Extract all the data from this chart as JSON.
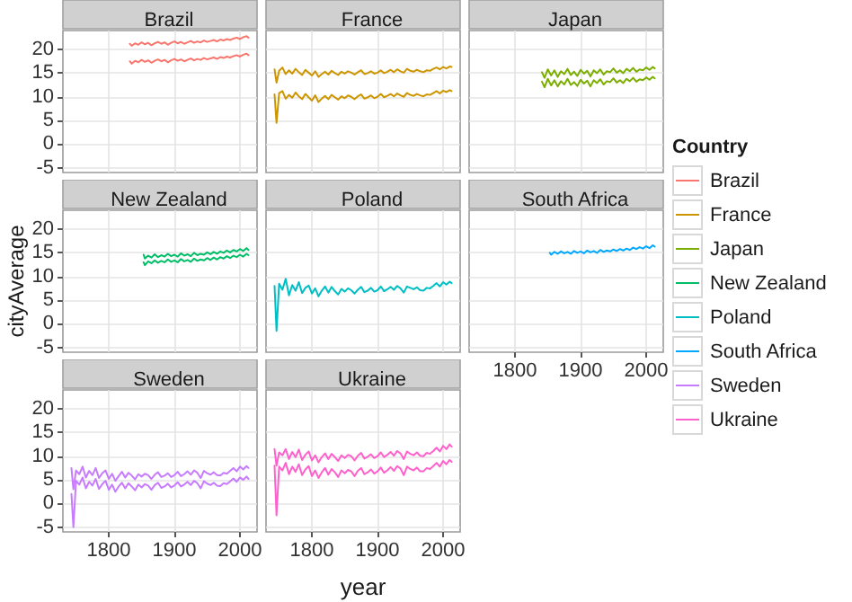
{
  "chart_data": [
    {
      "type": "line",
      "title": "Brazil",
      "legend": "right",
      "legend_title": "Country",
      "x": [
        1832,
        1835,
        1840,
        1845,
        1850,
        1855,
        1860,
        1865,
        1870,
        1875,
        1880,
        1885,
        1890,
        1895,
        1900,
        1905,
        1910,
        1915,
        1920,
        1925,
        1930,
        1935,
        1940,
        1945,
        1950,
        1955,
        1960,
        1965,
        1970,
        1975,
        1980,
        1985,
        1990,
        1995,
        2000,
        2005,
        2010,
        2013
      ],
      "xlim": [
        1730,
        2026
      ],
      "ylim": [
        -6,
        24
      ],
      "xticks": [
        1800,
        1900,
        2000
      ],
      "yticks": [
        -5,
        0,
        5,
        10,
        15,
        20
      ],
      "grid": true,
      "marker": "none",
      "tick_labels": "y",
      "series": [
        {
          "name": "Brazil",
          "color": "#f8766d",
          "values": [
            21.2,
            20.8,
            21.3,
            21.0,
            21.5,
            21.1,
            21.4,
            20.9,
            21.3,
            21.6,
            21.2,
            21.5,
            21.0,
            21.4,
            21.7,
            21.3,
            21.6,
            21.2,
            21.5,
            21.8,
            21.4,
            21.7,
            21.5,
            21.9,
            21.6,
            21.8,
            22.0,
            21.7,
            22.1,
            21.9,
            22.2,
            22.0,
            22.3,
            22.5,
            22.2,
            22.6,
            22.8,
            22.5
          ]
        },
        {
          "color": "#f8766d",
          "values": [
            17.5,
            17.0,
            17.6,
            17.3,
            17.8,
            17.4,
            17.7,
            17.2,
            17.6,
            17.9,
            17.5,
            17.8,
            17.3,
            17.7,
            18.0,
            17.6,
            17.9,
            17.5,
            17.8,
            18.1,
            17.7,
            18.0,
            17.8,
            18.2,
            17.9,
            18.1,
            18.3,
            18.0,
            18.4,
            18.2,
            18.5,
            18.3,
            18.6,
            18.8,
            18.5,
            18.9,
            19.1,
            18.8
          ]
        }
      ]
    },
    {
      "type": "line",
      "title": "France",
      "x": [
        1743,
        1746,
        1750,
        1755,
        1760,
        1765,
        1770,
        1775,
        1780,
        1785,
        1790,
        1795,
        1800,
        1805,
        1810,
        1815,
        1820,
        1825,
        1830,
        1835,
        1840,
        1845,
        1850,
        1855,
        1860,
        1865,
        1870,
        1875,
        1880,
        1885,
        1890,
        1895,
        1900,
        1905,
        1910,
        1915,
        1920,
        1925,
        1930,
        1935,
        1940,
        1945,
        1950,
        1955,
        1960,
        1965,
        1970,
        1975,
        1980,
        1985,
        1990,
        1995,
        2000,
        2005,
        2010,
        2013
      ],
      "xlim": [
        1730,
        2026
      ],
      "ylim": [
        -6,
        24
      ],
      "xticks": [
        1800,
        1900,
        2000
      ],
      "yticks": [
        -5,
        0,
        5,
        10,
        15,
        20
      ],
      "grid": true,
      "marker": "none",
      "tick_labels": false,
      "series": [
        {
          "name": "France",
          "color": "#cd9600",
          "values": [
            15.8,
            13,
            15.5,
            16.2,
            14.8,
            15.6,
            14.9,
            15.9,
            15.2,
            14.6,
            15.7,
            15.1,
            14.5,
            15.4,
            14.2,
            14.8,
            15.3,
            14.7,
            15.5,
            15.0,
            14.6,
            15.3,
            14.9,
            15.4,
            15.1,
            14.7,
            15.2,
            15.6,
            14.8,
            15.0,
            15.4,
            14.9,
            15.1,
            15.6,
            15.0,
            15.3,
            15.7,
            15.2,
            15.8,
            15.4,
            15.1,
            15.9,
            15.5,
            15.3,
            15.7,
            15.4,
            15.2,
            15.6,
            15.5,
            15.9,
            16.2,
            15.8,
            16.3,
            16.0,
            16.4,
            16.3
          ]
        },
        {
          "color": "#cd9600",
          "values": [
            10.5,
            4.5,
            10.8,
            11.2,
            9.6,
            10.4,
            9.8,
            10.9,
            10.1,
            9.5,
            10.6,
            9.9,
            9.2,
            10.3,
            8.9,
            9.6,
            10.2,
            9.5,
            10.4,
            9.9,
            9.4,
            10.1,
            9.7,
            10.3,
            10.0,
            9.5,
            10.1,
            10.5,
            9.6,
            9.9,
            10.3,
            9.7,
            10.0,
            10.6,
            9.9,
            10.2,
            10.6,
            10.1,
            10.7,
            10.3,
            10.0,
            10.8,
            10.4,
            10.2,
            10.6,
            10.3,
            10.1,
            10.5,
            10.4,
            10.8,
            11.2,
            10.7,
            11.3,
            11.0,
            11.4,
            11.2
          ]
        }
      ]
    },
    {
      "type": "line",
      "title": "Japan",
      "x": [
        1841,
        1845,
        1850,
        1855,
        1860,
        1865,
        1870,
        1875,
        1880,
        1885,
        1890,
        1895,
        1900,
        1905,
        1910,
        1915,
        1920,
        1925,
        1930,
        1935,
        1940,
        1945,
        1950,
        1955,
        1960,
        1965,
        1970,
        1975,
        1980,
        1985,
        1990,
        1995,
        2000,
        2005,
        2010,
        2013
      ],
      "xlim": [
        1730,
        2026
      ],
      "ylim": [
        -6,
        24
      ],
      "xticks": [
        1800,
        1900,
        2000
      ],
      "yticks": [
        -5,
        0,
        5,
        10,
        15,
        20
      ],
      "grid": true,
      "marker": "none",
      "tick_labels": false,
      "series": [
        {
          "name": "Japan",
          "color": "#7cae00",
          "values": [
            15.2,
            14.0,
            15.8,
            14.5,
            15.6,
            14.2,
            15.4,
            14.8,
            15.9,
            14.6,
            15.3,
            14.4,
            15.7,
            14.9,
            15.5,
            14.3,
            15.6,
            15.0,
            15.8,
            14.7,
            15.4,
            15.2,
            16.0,
            15.1,
            15.6,
            15.0,
            15.9,
            15.4,
            16.1,
            15.3,
            15.8,
            15.6,
            16.2,
            15.7,
            16.3,
            16.0
          ]
        },
        {
          "color": "#7cae00",
          "values": [
            13.2,
            12.0,
            13.8,
            12.4,
            13.5,
            12.2,
            13.3,
            12.6,
            13.8,
            12.5,
            13.1,
            12.3,
            13.6,
            12.8,
            13.4,
            12.2,
            13.5,
            12.9,
            13.7,
            12.6,
            13.3,
            13.1,
            13.9,
            13.0,
            13.5,
            12.9,
            13.8,
            13.3,
            14.0,
            13.2,
            13.7,
            13.5,
            14.1,
            13.6,
            14.2,
            13.9
          ]
        }
      ]
    },
    {
      "type": "line",
      "title": "New Zealand",
      "ylabel": "cityAverage",
      "x": [
        1853,
        1855,
        1860,
        1865,
        1870,
        1875,
        1880,
        1885,
        1890,
        1895,
        1900,
        1905,
        1910,
        1915,
        1920,
        1925,
        1930,
        1935,
        1940,
        1945,
        1950,
        1955,
        1960,
        1965,
        1970,
        1975,
        1980,
        1985,
        1990,
        1995,
        2000,
        2005,
        2010,
        2013
      ],
      "xlim": [
        1730,
        2026
      ],
      "ylim": [
        -6,
        24
      ],
      "xticks": [
        1800,
        1900,
        2000
      ],
      "yticks": [
        -5,
        0,
        5,
        10,
        15,
        20
      ],
      "grid": true,
      "marker": "none",
      "tick_labels": "y",
      "series": [
        {
          "name": "New Zealand",
          "color": "#00be67",
          "values": [
            14.6,
            13.8,
            14.4,
            14.0,
            14.7,
            14.1,
            14.5,
            14.2,
            14.8,
            14.3,
            14.6,
            14.2,
            14.9,
            14.4,
            14.7,
            14.3,
            15.0,
            14.5,
            14.8,
            14.6,
            15.1,
            14.7,
            15.2,
            14.8,
            15.3,
            15.0,
            15.5,
            15.1,
            15.6,
            15.3,
            15.8,
            15.4,
            16.0,
            15.6
          ]
        },
        {
          "color": "#00be67",
          "values": [
            13.0,
            12.4,
            13.2,
            12.8,
            13.4,
            12.9,
            13.3,
            13.0,
            13.6,
            13.1,
            13.4,
            13.0,
            13.7,
            13.2,
            13.5,
            13.1,
            13.8,
            13.3,
            13.6,
            13.4,
            13.9,
            13.5,
            14.0,
            13.6,
            14.1,
            13.8,
            14.3,
            13.9,
            14.4,
            14.1,
            14.6,
            14.2,
            14.8,
            14.5
          ]
        }
      ]
    },
    {
      "type": "line",
      "title": "Poland",
      "x": [
        1743,
        1746,
        1750,
        1755,
        1760,
        1765,
        1770,
        1775,
        1780,
        1785,
        1790,
        1795,
        1800,
        1805,
        1810,
        1815,
        1820,
        1825,
        1830,
        1835,
        1840,
        1845,
        1850,
        1855,
        1860,
        1865,
        1870,
        1875,
        1880,
        1885,
        1890,
        1895,
        1900,
        1905,
        1910,
        1915,
        1920,
        1925,
        1930,
        1935,
        1940,
        1945,
        1950,
        1955,
        1960,
        1965,
        1970,
        1975,
        1980,
        1985,
        1990,
        1995,
        2000,
        2005,
        2010,
        2013
      ],
      "xlim": [
        1730,
        2026
      ],
      "ylim": [
        -6,
        24
      ],
      "xticks": [
        1800,
        1900,
        2000
      ],
      "yticks": [
        -5,
        0,
        5,
        10,
        15,
        20
      ],
      "grid": true,
      "marker": "none",
      "tick_labels": false,
      "series": [
        {
          "name": "Poland",
          "color": "#00bfc4",
          "values": [
            8,
            -1.5,
            8.5,
            7.2,
            9.5,
            6.0,
            8.2,
            7.0,
            8.8,
            6.5,
            7.6,
            8.1,
            6.4,
            7.5,
            5.8,
            7.0,
            7.9,
            6.6,
            7.8,
            6.9,
            6.2,
            7.4,
            6.8,
            7.5,
            7.1,
            6.4,
            7.2,
            7.8,
            6.7,
            7.0,
            7.6,
            6.8,
            7.1,
            7.9,
            6.9,
            7.3,
            7.8,
            7.2,
            8.0,
            7.5,
            6.6,
            7.9,
            7.6,
            7.3,
            7.7,
            7.1,
            7.0,
            7.6,
            7.5,
            8.0,
            8.6,
            7.9,
            8.8,
            8.3,
            8.9,
            8.6
          ]
        }
      ]
    },
    {
      "type": "line",
      "title": "South Africa",
      "x": [
        1853,
        1855,
        1860,
        1865,
        1870,
        1875,
        1880,
        1885,
        1890,
        1895,
        1900,
        1905,
        1910,
        1915,
        1920,
        1925,
        1930,
        1935,
        1940,
        1945,
        1950,
        1955,
        1960,
        1965,
        1970,
        1975,
        1980,
        1985,
        1990,
        1995,
        2000,
        2005,
        2010,
        2013
      ],
      "xlim": [
        1730,
        2026
      ],
      "ylim": [
        -6,
        24
      ],
      "xticks": [
        1800,
        1900,
        2000
      ],
      "yticks": [
        -5,
        0,
        5,
        10,
        15,
        20
      ],
      "grid": true,
      "marker": "none",
      "tick_labels": "x",
      "series": [
        {
          "name": "South Africa",
          "color": "#00a9ff",
          "values": [
            15.0,
            14.6,
            15.2,
            14.8,
            15.3,
            14.9,
            15.2,
            14.8,
            15.4,
            15.0,
            15.3,
            14.9,
            15.5,
            15.1,
            15.4,
            15.0,
            15.6,
            15.2,
            15.5,
            15.3,
            15.7,
            15.4,
            15.8,
            15.5,
            15.9,
            15.6,
            16.1,
            15.8,
            16.2,
            15.9,
            16.4,
            16.0,
            16.6,
            16.3
          ]
        }
      ]
    },
    {
      "type": "line",
      "title": "Sweden",
      "x": [
        1743,
        1746,
        1750,
        1755,
        1760,
        1765,
        1770,
        1775,
        1780,
        1785,
        1790,
        1795,
        1800,
        1805,
        1810,
        1815,
        1820,
        1825,
        1830,
        1835,
        1840,
        1845,
        1850,
        1855,
        1860,
        1865,
        1870,
        1875,
        1880,
        1885,
        1890,
        1895,
        1900,
        1905,
        1910,
        1915,
        1920,
        1925,
        1930,
        1935,
        1940,
        1945,
        1950,
        1955,
        1960,
        1965,
        1970,
        1975,
        1980,
        1985,
        1990,
        1995,
        2000,
        2005,
        2010,
        2013
      ],
      "xlim": [
        1730,
        2026
      ],
      "ylim": [
        -6,
        24
      ],
      "xticks": [
        1800,
        1900,
        2000
      ],
      "yticks": [
        -5,
        0,
        5,
        10,
        15,
        20
      ],
      "grid": true,
      "marker": "none",
      "series": [
        {
          "name": "Sweden",
          "color": "#c77cff",
          "values": [
            7.5,
            3,
            7.0,
            6.2,
            7.8,
            5.5,
            6.9,
            6.0,
            7.5,
            5.4,
            6.4,
            7.0,
            5.2,
            6.3,
            4.8,
            5.8,
            6.7,
            5.5,
            6.5,
            5.9,
            5.1,
            6.2,
            5.7,
            6.3,
            6.0,
            5.2,
            6.1,
            6.6,
            5.6,
            5.9,
            6.4,
            5.6,
            6.0,
            6.7,
            5.8,
            6.2,
            6.8,
            6.1,
            7.0,
            6.5,
            5.4,
            6.9,
            6.4,
            6.1,
            6.6,
            6.0,
            5.9,
            6.5,
            6.3,
            6.9,
            7.5,
            6.8,
            7.8,
            7.2,
            7.9,
            7.5
          ]
        },
        {
          "color": "#c77cff",
          "values": [
            2,
            -5,
            4.8,
            4.0,
            5.5,
            3.2,
            4.6,
            3.8,
            5.2,
            3.1,
            4.1,
            4.8,
            2.9,
            4.0,
            2.5,
            3.6,
            4.4,
            3.2,
            4.3,
            3.6,
            2.8,
            4.0,
            3.4,
            4.1,
            3.8,
            2.9,
            3.9,
            4.4,
            3.3,
            3.6,
            4.2,
            3.4,
            3.8,
            4.5,
            3.6,
            4.0,
            4.6,
            3.9,
            4.8,
            4.3,
            3.2,
            4.7,
            4.2,
            3.9,
            4.4,
            3.8,
            3.7,
            4.3,
            4.1,
            4.7,
            5.3,
            4.6,
            5.5,
            5.0,
            5.7,
            5.2
          ]
        }
      ]
    },
    {
      "type": "line",
      "title": "Ukraine",
      "xlabel": "year",
      "x": [
        1743,
        1746,
        1750,
        1755,
        1760,
        1765,
        1770,
        1775,
        1780,
        1785,
        1790,
        1795,
        1800,
        1805,
        1810,
        1815,
        1820,
        1825,
        1830,
        1835,
        1840,
        1845,
        1850,
        1855,
        1860,
        1865,
        1870,
        1875,
        1880,
        1885,
        1890,
        1895,
        1900,
        1905,
        1910,
        1915,
        1920,
        1925,
        1930,
        1935,
        1940,
        1945,
        1950,
        1955,
        1960,
        1965,
        1970,
        1975,
        1980,
        1985,
        1990,
        1995,
        2000,
        2005,
        2010,
        2013
      ],
      "xlim": [
        1730,
        2026
      ],
      "ylim": [
        -6,
        24
      ],
      "xticks": [
        1800,
        1900,
        2000
      ],
      "yticks": [
        -5,
        0,
        5,
        10,
        15,
        20
      ],
      "grid": true,
      "marker": "none",
      "tick_labels": "x",
      "series": [
        {
          "name": "Ukraine",
          "color": "#ff61cc",
          "values": [
            11.5,
            8,
            10.8,
            10.2,
            11.5,
            9.4,
            10.9,
            9.8,
            11.4,
            9.2,
            10.3,
            11.0,
            9.1,
            10.2,
            8.7,
            9.8,
            10.6,
            9.4,
            10.5,
            9.8,
            9.0,
            10.2,
            9.6,
            10.3,
            10.0,
            9.1,
            10.1,
            10.7,
            9.5,
            9.9,
            10.4,
            9.6,
            10.0,
            10.8,
            9.8,
            10.3,
            10.9,
            10.1,
            11.1,
            10.6,
            9.4,
            11.0,
            10.5,
            10.2,
            10.8,
            10.1,
            10.0,
            10.7,
            10.5,
            11.1,
            11.8,
            11.0,
            12.2,
            11.5,
            12.5,
            12.0
          ]
        },
        {
          "color": "#ff61cc",
          "values": [
            8,
            -2.5,
            7.8,
            7.0,
            8.6,
            6.2,
            7.8,
            6.7,
            8.3,
            6.0,
            7.2,
            7.9,
            5.8,
            7.0,
            5.4,
            6.6,
            7.5,
            6.1,
            7.3,
            6.6,
            5.6,
            7.0,
            6.4,
            7.1,
            6.8,
            5.8,
            6.9,
            7.5,
            6.2,
            6.6,
            7.2,
            6.3,
            6.8,
            7.6,
            6.5,
            7.0,
            7.7,
            6.9,
            7.9,
            7.4,
            6.0,
            7.8,
            7.3,
            7.0,
            7.6,
            6.8,
            6.8,
            7.5,
            7.3,
            7.9,
            8.6,
            7.8,
            9.0,
            8.3,
            9.2,
            8.8
          ]
        }
      ]
    }
  ]
}
